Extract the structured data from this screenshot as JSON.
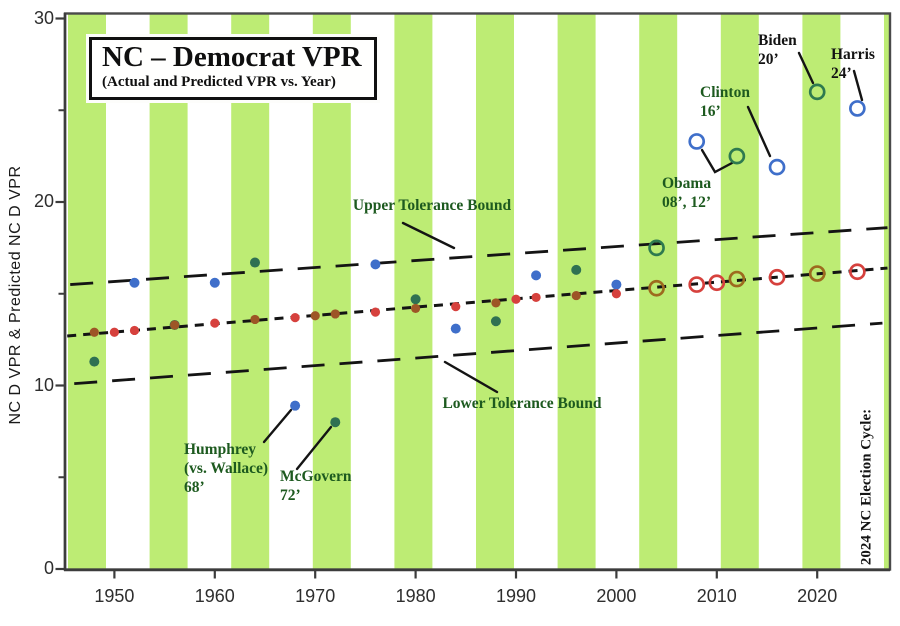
{
  "chart_data": {
    "type": "scatter",
    "title": "NC – Democrat VPR",
    "subtitle": "(Actual and Predicted VPR vs. Year)",
    "ylabel": "NC D VPR & Predicted NC D VPR",
    "xlim": [
      1944.5,
      2027
    ],
    "ylim": [
      0,
      30
    ],
    "x_ticks": [
      1950,
      1960,
      1970,
      1980,
      1990,
      2000,
      2010,
      2020
    ],
    "y_ticks": [
      30,
      20,
      10,
      0
    ],
    "y_minor_ticks": [
      25,
      15,
      5
    ],
    "grid": "off",
    "legend_position": "none",
    "series": [
      {
        "name": "Actual NC D VPR (filled dots, 1948-2000)",
        "style": "filled-dot",
        "marker_radius": 5,
        "color": "#3f6fca",
        "color_on_stripe": "#2f7152",
        "x": [
          1948,
          1952,
          1956,
          1960,
          1964,
          1968,
          1972,
          1976,
          1980,
          1984,
          1988,
          1992,
          1996,
          2000
        ],
        "values": [
          11.3,
          15.6,
          13.3,
          15.6,
          16.7,
          8.9,
          8.0,
          16.6,
          14.7,
          13.1,
          13.5,
          16.0,
          16.3,
          15.5
        ]
      },
      {
        "name": "Actual NC D VPR (open circles, 2004-2024)",
        "style": "open-circle",
        "marker_radius": 7,
        "color": "#3f6fca",
        "color_on_stripe": "#2e7a4f",
        "x": [
          2004,
          2008,
          2012,
          2016,
          2020,
          2024
        ],
        "values": [
          17.5,
          23.3,
          22.5,
          21.9,
          26.0,
          25.1
        ]
      },
      {
        "name": "Predicted NC D VPR (filled dots, 1948-2000)",
        "style": "filled-dot",
        "marker_radius": 4.6,
        "color": "#d6413d",
        "color_on_stripe": "#9d5526",
        "x": [
          1948,
          1950,
          1952,
          1956,
          1960,
          1964,
          1968,
          1970,
          1972,
          1976,
          1980,
          1984,
          1988,
          1990,
          1992,
          1996,
          2000
        ],
        "values": [
          12.9,
          12.9,
          13.0,
          13.3,
          13.4,
          13.6,
          13.7,
          13.8,
          13.9,
          14.0,
          14.2,
          14.3,
          14.5,
          14.7,
          14.8,
          14.9,
          15.0
        ]
      },
      {
        "name": "Predicted NC D VPR (open circles, 2004-2024)",
        "style": "open-circle",
        "marker_radius": 7,
        "color": "#d6413d",
        "color_on_stripe": "#9d6a1e",
        "x": [
          2004,
          2008,
          2010,
          2012,
          2016,
          2020,
          2024
        ],
        "values": [
          15.3,
          15.5,
          15.6,
          15.8,
          15.9,
          16.1,
          16.2
        ]
      }
    ],
    "trend_line": {
      "x": [
        1945.3,
        2027
      ],
      "values": [
        12.7,
        16.4
      ],
      "style": "short-dash"
    },
    "upper_bound": {
      "label": "Upper Tolerance Bound",
      "x": [
        1945.6,
        2027
      ],
      "values": [
        15.5,
        18.6
      ],
      "style": "long-dash"
    },
    "lower_bound": {
      "label": "Lower Tolerance Bound",
      "x": [
        1946,
        2026.5
      ],
      "values": [
        10.1,
        13.4
      ],
      "style": "long-dash"
    },
    "stripes": {
      "color": "#bdec74",
      "first_year": 1948,
      "period_years": 8,
      "width_years": 3.8
    },
    "annotations": {
      "humphrey": {
        "lines": [
          "Humphrey",
          "(vs. Wallace)",
          "68’"
        ],
        "target_year": 1968
      },
      "mcgovern": {
        "lines": [
          "McGovern",
          "72’"
        ],
        "target_year": 1972
      },
      "obama": {
        "lines": [
          "Obama",
          "08’, 12’"
        ],
        "target_years": [
          2008,
          2012
        ]
      },
      "clinton": {
        "lines": [
          "Clinton",
          "16’"
        ],
        "target_year": 2016
      },
      "biden": {
        "lines": [
          "Biden",
          "20’"
        ],
        "target_year": 2020
      },
      "harris": {
        "lines": [
          "Harris",
          "24’"
        ],
        "target_year": 2024
      },
      "right_note": "2024 NC Election Cycle:"
    },
    "colors": {
      "actual_blue": "#3f6fca",
      "predicted_red": "#d6413d",
      "stripe_green": "#bdec74",
      "annotation_green": "#1d5a1f",
      "ink_black": "#141414"
    }
  }
}
